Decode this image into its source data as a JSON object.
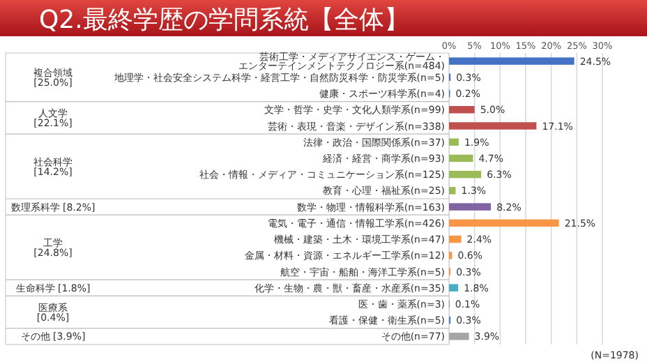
{
  "chart_data": {
    "type": "bar",
    "orientation": "horizontal",
    "title": "Q2.最終学歴の学問系統【全体】",
    "categories": [
      "芸術工学・メディアサイエンス・ゲーム・エンターテインメントテクノロジー系(n=484)",
      "地理学・社会安全システム科学・経営工学・自然防災科学・防災学系(n=5)",
      "健康・スポーツ科学系(n=4)",
      "文学・哲学・史学・文化人類学系(n=99)",
      "芸術・表現・音楽・デザイン系(n=338)",
      "法律・政治・国際関係系(n=37)",
      "経済・経営・商学系(n=93)",
      "社会・情報・メディア・コミュニケーション系(n=125)",
      "教育・心理・福祉系(n=25)",
      "数学・物理・情報科学系(n=163)",
      "電気・電子・通信・情報工学系(n=426)",
      "機械・建築・土木・環境工学系(n=47)",
      "金属・材料・資源・エネルギー工学系(n=12)",
      "航空・宇宙・船舶・海洋工学系(n=5)",
      "化学・生物・農・獣・畜産・水産系(n=35)",
      "医・歯・薬系(n=3)",
      "看護・保健・衛生系(n=5)",
      "その他(n=77)"
    ],
    "values": [
      24.5,
      0.3,
      0.2,
      5.0,
      17.1,
      1.9,
      4.7,
      6.3,
      1.3,
      8.2,
      21.5,
      2.4,
      0.6,
      0.3,
      1.8,
      0.1,
      0.3,
      3.9
    ],
    "value_labels": [
      "24.5%",
      "0.3%",
      "0.2%",
      "5.0%",
      "17.1%",
      "1.9%",
      "4.7%",
      "6.3%",
      "1.3%",
      "8.2%",
      "21.5%",
      "2.4%",
      "0.6%",
      "0.3%",
      "1.8%",
      "0.1%",
      "0.3%",
      "3.9%"
    ],
    "colors": [
      "#4472c4",
      "#4472c4",
      "#4472c4",
      "#c0504d",
      "#c0504d",
      "#9bbb59",
      "#9bbb59",
      "#9bbb59",
      "#9bbb59",
      "#8064a2",
      "#f79646",
      "#f79646",
      "#f79646",
      "#f79646",
      "#4bacc6",
      "#4f81bd",
      "#4f81bd",
      "#a5a5a5"
    ],
    "xlim": [
      0,
      30
    ],
    "xticks": [
      {
        "value": 0,
        "label": "0%"
      },
      {
        "value": 5,
        "label": "5%"
      },
      {
        "value": 10,
        "label": "10%"
      },
      {
        "value": 15,
        "label": "15%"
      },
      {
        "value": 20,
        "label": "20%"
      },
      {
        "value": 25,
        "label": "25%"
      },
      {
        "value": 30,
        "label": "30%"
      }
    ],
    "grid": "x",
    "annotations": [
      "複合領域\n[25.0%]",
      "人文学\n[22.1%]",
      "社会科学\n[14.2%]",
      "数理系科学\n[8.2%]",
      "工学\n[24.8%]",
      "生命科学\n[1.8%]",
      "医療系\n[0.4%]",
      "その他\n[3.9%]",
      "(N=1978)"
    ]
  }
}
